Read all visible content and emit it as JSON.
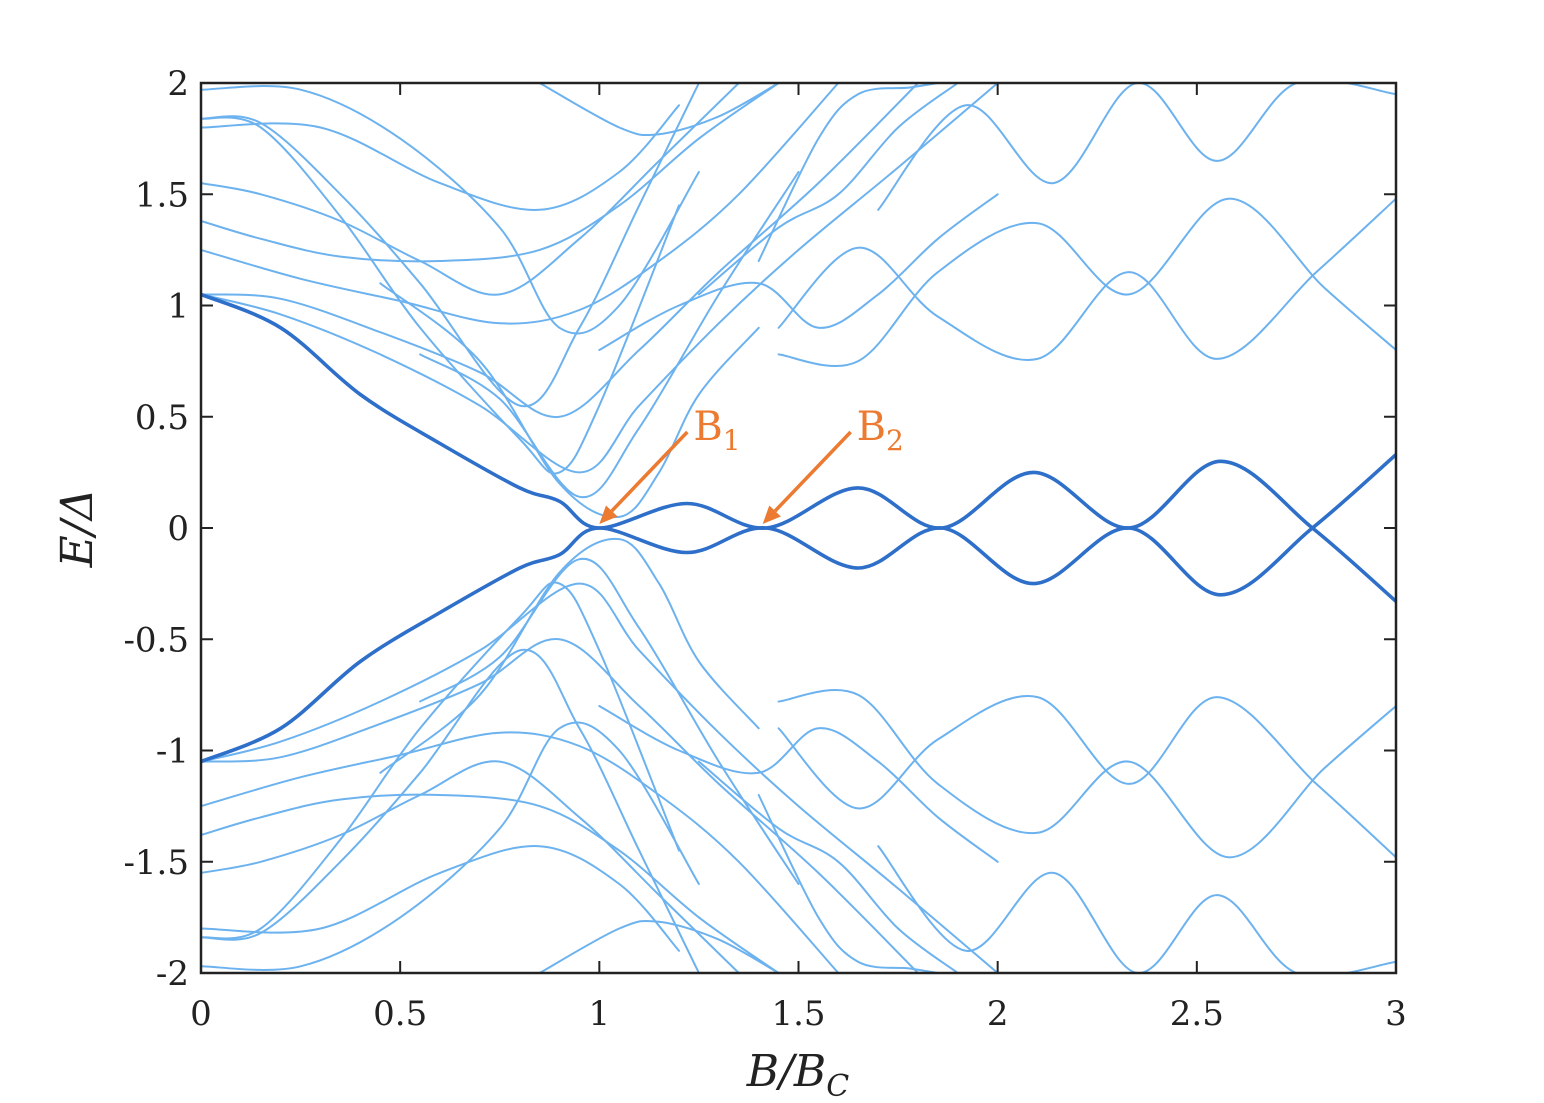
{
  "chart_data": {
    "type": "line",
    "title": "",
    "xlabel": "B/B",
    "xlabel_sub": "C",
    "ylabel": "E/Δ",
    "xlim": [
      0,
      3
    ],
    "ylim": [
      -2,
      2
    ],
    "x_ticks": [
      0,
      0.5,
      1,
      1.5,
      2,
      2.5,
      3
    ],
    "x_tick_labels": [
      "0",
      "0.5",
      "1",
      "1.5",
      "2",
      "2.5",
      "3"
    ],
    "y_ticks": [
      -2,
      -1.5,
      -1,
      -0.5,
      0,
      0.5,
      1,
      1.5,
      2
    ],
    "y_tick_labels": [
      "-2",
      "-1.5",
      "-1",
      "-0.5",
      "0",
      "0.5",
      "1",
      "1.5",
      "2"
    ],
    "grid": false,
    "legend": "none",
    "colors": {
      "low_energy": "#2e6fc9",
      "bulk": "#6cb2ef",
      "annotation": "#ec7a30",
      "axes": "#222222"
    },
    "series": [
      {
        "group": "low",
        "x": [
          0,
          0.2,
          0.4,
          0.6,
          0.8,
          0.9,
          1.0,
          1.22,
          1.42,
          1.65,
          1.86,
          2.09,
          2.33,
          2.56,
          2.79,
          3.0
        ],
        "y": [
          1.05,
          0.9,
          0.6,
          0.38,
          0.18,
          0.12,
          0.0,
          0.11,
          0.0,
          0.18,
          0.0,
          0.25,
          0.0,
          0.3,
          0.0,
          -0.33
        ]
      },
      {
        "group": "low",
        "x": [
          0,
          0.2,
          0.4,
          0.6,
          0.8,
          0.9,
          1.0,
          1.22,
          1.42,
          1.65,
          1.86,
          2.09,
          2.33,
          2.56,
          2.79,
          3.0
        ],
        "y": [
          -1.05,
          -0.9,
          -0.6,
          -0.38,
          -0.18,
          -0.12,
          0.0,
          -0.11,
          0.0,
          -0.18,
          0.0,
          -0.25,
          0.0,
          -0.3,
          0.0,
          0.33
        ]
      },
      {
        "group": "bulk",
        "x": [
          0,
          0.2,
          0.45,
          0.7,
          0.95,
          1.1,
          1.3,
          1.5,
          1.75,
          2.0
        ],
        "y": [
          1.05,
          0.96,
          0.78,
          0.55,
          0.25,
          0.55,
          0.92,
          1.25,
          1.62,
          2.0
        ]
      },
      {
        "group": "bulk",
        "x": [
          0,
          0.2,
          0.45,
          0.7,
          0.9,
          1.1,
          1.3,
          1.55,
          1.8
        ],
        "y": [
          1.05,
          1.03,
          0.88,
          0.7,
          0.5,
          0.8,
          1.15,
          1.55,
          2.0
        ]
      },
      {
        "group": "bulk",
        "x": [
          0,
          0.25,
          0.5,
          0.75,
          0.95,
          1.15,
          1.35,
          1.6
        ],
        "y": [
          1.25,
          1.12,
          1.02,
          0.92,
          0.98,
          1.2,
          1.5,
          2.0
        ]
      },
      {
        "group": "bulk",
        "x": [
          0,
          0.15,
          0.35,
          0.6,
          0.85,
          1.05,
          1.25,
          1.45
        ],
        "y": [
          1.38,
          1.3,
          1.22,
          1.2,
          1.25,
          1.45,
          1.75,
          2.0
        ]
      },
      {
        "group": "bulk",
        "x": [
          0,
          0.15,
          0.35,
          0.55,
          0.75,
          0.95,
          1.15,
          1.35
        ],
        "y": [
          1.55,
          1.5,
          1.38,
          1.2,
          1.05,
          1.3,
          1.65,
          2.0
        ]
      },
      {
        "group": "bulk",
        "x": [
          0,
          0.15,
          0.35,
          0.55,
          0.8,
          0.95,
          1.1,
          1.25
        ],
        "y": [
          1.84,
          1.82,
          1.5,
          1.1,
          0.55,
          0.9,
          1.45,
          2.0
        ]
      },
      {
        "group": "bulk",
        "x": [
          0,
          0.15,
          0.35,
          0.55,
          0.8,
          0.9,
          1.0,
          1.2
        ],
        "y": [
          1.84,
          1.8,
          1.4,
          0.9,
          0.4,
          0.25,
          0.55,
          1.45
        ]
      },
      {
        "group": "bulk",
        "x": [
          0,
          0.3,
          0.6,
          0.85,
          1.05,
          1.2
        ],
        "y": [
          1.8,
          1.8,
          1.55,
          1.43,
          1.6,
          1.9
        ]
      },
      {
        "group": "bulk",
        "x": [
          0.85,
          1.05,
          1.15,
          1.3,
          1.45
        ],
        "y": [
          2.0,
          1.8,
          1.77,
          1.85,
          2.0
        ]
      },
      {
        "group": "bulk",
        "x": [
          0,
          0.25,
          0.5,
          0.75,
          0.9,
          1.05,
          1.25
        ],
        "y": [
          1.97,
          1.97,
          1.75,
          1.35,
          0.9,
          1.0,
          1.6
        ]
      },
      {
        "group": "bulk",
        "x": [
          0.55,
          0.75,
          0.95,
          1.1,
          1.3,
          1.5
        ],
        "y": [
          0.78,
          0.58,
          0.14,
          0.45,
          1.05,
          1.6
        ]
      },
      {
        "group": "bulk",
        "x": [
          0.45,
          0.7,
          0.9,
          1.05,
          1.15,
          1.25,
          1.4
        ],
        "y": [
          1.1,
          0.75,
          0.2,
          0.05,
          0.25,
          0.6,
          0.9
        ]
      },
      {
        "group": "bulk",
        "x": [
          1.0,
          1.2,
          1.4,
          1.55,
          1.7,
          1.85,
          2.0
        ],
        "y": [
          0.8,
          1.0,
          1.1,
          0.9,
          1.05,
          1.3,
          1.5
        ]
      },
      {
        "group": "bulk",
        "x": [
          1.25,
          1.45,
          1.6,
          1.75,
          1.9
        ],
        "y": [
          1.05,
          1.35,
          1.5,
          1.8,
          2.0
        ]
      },
      {
        "group": "bulk",
        "x": [
          1.4,
          1.55,
          1.65,
          1.78,
          1.85
        ],
        "y": [
          1.2,
          1.75,
          1.95,
          1.98,
          2.0
        ]
      },
      {
        "group": "bulk",
        "x": [
          1.7,
          1.92,
          2.14,
          2.35,
          2.55,
          2.75,
          3.0
        ],
        "y": [
          1.43,
          1.9,
          1.55,
          2.0,
          1.65,
          2.0,
          1.95
        ]
      },
      {
        "group": "bulk",
        "x": [
          1.45,
          1.65,
          1.85,
          2.1,
          2.33,
          2.58,
          2.82,
          3.0
        ],
        "y": [
          0.78,
          0.75,
          1.15,
          1.37,
          1.05,
          1.48,
          1.08,
          0.8
        ]
      },
      {
        "group": "bulk",
        "x": [
          1.45,
          1.65,
          1.85,
          2.1,
          2.33,
          2.55,
          2.8,
          3.0
        ],
        "y": [
          0.9,
          1.26,
          0.95,
          0.76,
          1.15,
          0.76,
          1.15,
          1.48
        ]
      },
      {
        "group": "bulk",
        "x": [
          0,
          0.2,
          0.45,
          0.7,
          0.95,
          1.1,
          1.3,
          1.5,
          1.75,
          2.0
        ],
        "y": [
          -1.05,
          -0.96,
          -0.78,
          -0.55,
          -0.25,
          -0.55,
          -0.92,
          -1.25,
          -1.62,
          -2.0
        ]
      },
      {
        "group": "bulk",
        "x": [
          0,
          0.2,
          0.45,
          0.7,
          0.9,
          1.1,
          1.3,
          1.55,
          1.8
        ],
        "y": [
          -1.05,
          -1.03,
          -0.88,
          -0.7,
          -0.5,
          -0.8,
          -1.15,
          -1.55,
          -2.0
        ]
      },
      {
        "group": "bulk",
        "x": [
          0,
          0.25,
          0.5,
          0.75,
          0.95,
          1.15,
          1.35,
          1.6
        ],
        "y": [
          -1.25,
          -1.12,
          -1.02,
          -0.92,
          -0.98,
          -1.2,
          -1.5,
          -2.0
        ]
      },
      {
        "group": "bulk",
        "x": [
          0,
          0.15,
          0.35,
          0.6,
          0.85,
          1.05,
          1.25,
          1.45
        ],
        "y": [
          -1.38,
          -1.3,
          -1.22,
          -1.2,
          -1.25,
          -1.45,
          -1.75,
          -2.0
        ]
      },
      {
        "group": "bulk",
        "x": [
          0,
          0.15,
          0.35,
          0.55,
          0.75,
          0.95,
          1.15,
          1.35
        ],
        "y": [
          -1.55,
          -1.5,
          -1.38,
          -1.2,
          -1.05,
          -1.3,
          -1.65,
          -2.0
        ]
      },
      {
        "group": "bulk",
        "x": [
          0,
          0.15,
          0.35,
          0.55,
          0.8,
          0.95,
          1.1,
          1.25
        ],
        "y": [
          -1.84,
          -1.82,
          -1.5,
          -1.1,
          -0.55,
          -0.9,
          -1.45,
          -2.0
        ]
      },
      {
        "group": "bulk",
        "x": [
          0,
          0.15,
          0.35,
          0.55,
          0.8,
          0.9,
          1.0,
          1.2
        ],
        "y": [
          -1.84,
          -1.8,
          -1.4,
          -0.9,
          -0.4,
          -0.25,
          -0.55,
          -1.45
        ]
      },
      {
        "group": "bulk",
        "x": [
          0,
          0.3,
          0.6,
          0.85,
          1.05,
          1.2
        ],
        "y": [
          -1.8,
          -1.8,
          -1.55,
          -1.43,
          -1.6,
          -1.9
        ]
      },
      {
        "group": "bulk",
        "x": [
          0.85,
          1.05,
          1.15,
          1.3,
          1.45
        ],
        "y": [
          -2.0,
          -1.8,
          -1.77,
          -1.85,
          -2.0
        ]
      },
      {
        "group": "bulk",
        "x": [
          0,
          0.25,
          0.5,
          0.75,
          0.9,
          1.05,
          1.25
        ],
        "y": [
          -1.97,
          -1.97,
          -1.75,
          -1.35,
          -0.9,
          -1.0,
          -1.6
        ]
      },
      {
        "group": "bulk",
        "x": [
          0.55,
          0.75,
          0.95,
          1.1,
          1.3,
          1.5
        ],
        "y": [
          -0.78,
          -0.58,
          -0.14,
          -0.45,
          -1.05,
          -1.6
        ]
      },
      {
        "group": "bulk",
        "x": [
          0.45,
          0.7,
          0.9,
          1.05,
          1.15,
          1.25,
          1.4
        ],
        "y": [
          -1.1,
          -0.75,
          -0.2,
          -0.05,
          -0.25,
          -0.6,
          -0.9
        ]
      },
      {
        "group": "bulk",
        "x": [
          1.0,
          1.2,
          1.4,
          1.55,
          1.7,
          1.85,
          2.0
        ],
        "y": [
          -0.8,
          -1.0,
          -1.1,
          -0.9,
          -1.05,
          -1.3,
          -1.5
        ]
      },
      {
        "group": "bulk",
        "x": [
          1.25,
          1.45,
          1.6,
          1.75,
          1.9
        ],
        "y": [
          -1.05,
          -1.35,
          -1.5,
          -1.8,
          -2.0
        ]
      },
      {
        "group": "bulk",
        "x": [
          1.4,
          1.55,
          1.65,
          1.78,
          1.85
        ],
        "y": [
          -1.2,
          -1.75,
          -1.95,
          -1.98,
          -2.0
        ]
      },
      {
        "group": "bulk",
        "x": [
          1.7,
          1.92,
          2.14,
          2.35,
          2.55,
          2.75,
          3.0
        ],
        "y": [
          -1.43,
          -1.9,
          -1.55,
          -2.0,
          -1.65,
          -2.0,
          -1.95
        ]
      },
      {
        "group": "bulk",
        "x": [
          1.45,
          1.65,
          1.85,
          2.1,
          2.33,
          2.58,
          2.82,
          3.0
        ],
        "y": [
          -0.78,
          -0.75,
          -1.15,
          -1.37,
          -1.05,
          -1.48,
          -1.08,
          -0.8
        ]
      },
      {
        "group": "bulk",
        "x": [
          1.45,
          1.65,
          1.85,
          2.1,
          2.33,
          2.55,
          2.8,
          3.0
        ],
        "y": [
          -0.9,
          -1.26,
          -0.95,
          -0.76,
          -1.15,
          -0.76,
          -1.15,
          -1.48
        ]
      }
    ],
    "annotations": [
      {
        "label": "B",
        "sub": "1",
        "x": 1.0,
        "y": 0.0
      },
      {
        "label": "B",
        "sub": "2",
        "x": 1.41,
        "y": 0.0
      }
    ]
  }
}
